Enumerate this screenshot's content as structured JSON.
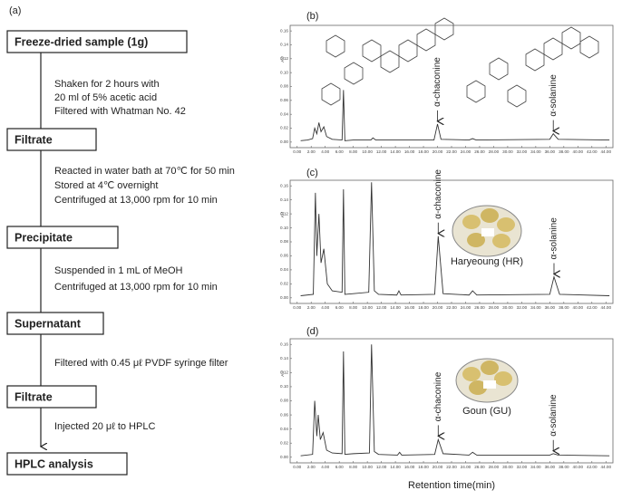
{
  "panel_label": "(a)",
  "flowchart": {
    "boxes": [
      "Freeze-dried sample (1g)",
      "Filtrate",
      "Precipitate",
      "Supernatant",
      "Filtrate",
      "HPLC analysis"
    ],
    "steps": [
      [
        "Shaken for 2 hours with",
        "20 ml of 5% acetic acid",
        "Filtered with Whatman No. 42"
      ],
      [
        "Reacted in water bath at 70℃ for 50 min",
        "Stored at 4℃ overnight",
        "Centrifuged at 13,000 rpm for 10 min"
      ],
      [
        "Suspended in 1 mL of MeOH",
        "Centrifuged at 13,000 rpm for 10 min"
      ],
      [
        "Filtered with 0.45 μℓ PVDF syringe filter"
      ],
      [
        "Injected 20 μℓ to HPLC"
      ]
    ]
  },
  "chart_data": [
    {
      "type": "line",
      "panel": "(b)",
      "ylabel": "AU",
      "color": "#333333",
      "annotations": [
        "α-chaconine",
        "α-solanine"
      ],
      "xlim": [
        -1,
        45
      ],
      "ylim": [
        -0.008,
        0.168
      ],
      "x": [
        0.5,
        1.5,
        2.2,
        2.5,
        2.8,
        3.1,
        3.4,
        3.8,
        4.2,
        5,
        6.4,
        6.6,
        6.8,
        8,
        10.5,
        10.8,
        11.2,
        19.5,
        20,
        20.5,
        24.5,
        25,
        25.5,
        36,
        36.5,
        37.2,
        44.5
      ],
      "values": [
        0.002,
        0.003,
        0.005,
        0.02,
        0.012,
        0.028,
        0.015,
        0.022,
        0.008,
        0.004,
        0.003,
        0.075,
        0.002,
        0.003,
        0.003,
        0.006,
        0.003,
        0.003,
        0.026,
        0.004,
        0.003,
        0.005,
        0.003,
        0.004,
        0.012,
        0.004,
        0.003
      ],
      "yticks": [
        {
          "value": 0,
          "label": "0.00"
        },
        {
          "value": 0.02,
          "label": "0.02"
        },
        {
          "value": 0.04,
          "label": "0.04"
        },
        {
          "value": 0.06,
          "label": "0.06"
        },
        {
          "value": 0.08,
          "label": "0.08"
        },
        {
          "value": 0.1,
          "label": "0.10"
        },
        {
          "value": 0.12,
          "label": "0.12"
        },
        {
          "value": 0.14,
          "label": "0.14"
        },
        {
          "value": 0.16,
          "label": "0.16"
        }
      ],
      "xticks": [
        {
          "value": 0,
          "label": "0.00"
        },
        {
          "value": 2,
          "label": "2.00"
        },
        {
          "value": 4,
          "label": "4.00"
        },
        {
          "value": 6,
          "label": "6.00"
        },
        {
          "value": 8,
          "label": "8.00"
        },
        {
          "value": 10,
          "label": "10.00"
        },
        {
          "value": 12,
          "label": "12.00"
        },
        {
          "value": 14,
          "label": "14.00"
        },
        {
          "value": 16,
          "label": "16.00"
        },
        {
          "value": 18,
          "label": "18.00"
        },
        {
          "value": 20,
          "label": "20.00"
        },
        {
          "value": 22,
          "label": "22.00"
        },
        {
          "value": 24,
          "label": "24.00"
        },
        {
          "value": 26,
          "label": "26.00"
        },
        {
          "value": 28,
          "label": "28.00"
        },
        {
          "value": 30,
          "label": "30.00"
        },
        {
          "value": 32,
          "label": "32.00"
        },
        {
          "value": 34,
          "label": "34.00"
        },
        {
          "value": 36,
          "label": "36.00"
        },
        {
          "value": 38,
          "label": "38.00"
        },
        {
          "value": 40,
          "label": "40.00"
        },
        {
          "value": 42,
          "label": "42.00"
        },
        {
          "value": 44,
          "label": "44.00"
        }
      ]
    },
    {
      "type": "line",
      "panel": "(c)",
      "ylabel": "AU",
      "color": "#333333",
      "annotations": [
        "α-chaconine",
        "α-solanine"
      ],
      "sample": "Haryeoung (HR)",
      "xlim": [
        -1,
        45
      ],
      "ylim": [
        -0.008,
        0.168
      ],
      "x": [
        0.5,
        2.3,
        2.6,
        2.8,
        3.1,
        3.4,
        3.8,
        4.3,
        5,
        6.4,
        6.6,
        6.8,
        8,
        10.2,
        10.6,
        11,
        11.6,
        14.2,
        14.5,
        14.8,
        19.6,
        20.1,
        20.8,
        24.5,
        25,
        25.6,
        36,
        36.6,
        37.4,
        44.5
      ],
      "values": [
        0.003,
        0.005,
        0.15,
        0.06,
        0.12,
        0.05,
        0.07,
        0.02,
        0.01,
        0.008,
        0.155,
        0.005,
        0.006,
        0.008,
        0.165,
        0.01,
        0.005,
        0.004,
        0.01,
        0.004,
        0.005,
        0.088,
        0.006,
        0.004,
        0.01,
        0.004,
        0.005,
        0.03,
        0.005,
        0.003
      ],
      "yticks": [
        {
          "value": 0,
          "label": "0.00"
        },
        {
          "value": 0.02,
          "label": "0.02"
        },
        {
          "value": 0.04,
          "label": "0.04"
        },
        {
          "value": 0.06,
          "label": "0.06"
        },
        {
          "value": 0.08,
          "label": "0.08"
        },
        {
          "value": 0.1,
          "label": "0.10"
        },
        {
          "value": 0.12,
          "label": "0.12"
        },
        {
          "value": 0.14,
          "label": "0.14"
        },
        {
          "value": 0.16,
          "label": "0.16"
        }
      ],
      "xticks": [
        {
          "value": 0,
          "label": "0.00"
        },
        {
          "value": 2,
          "label": "2.00"
        },
        {
          "value": 4,
          "label": "4.00"
        },
        {
          "value": 6,
          "label": "6.00"
        },
        {
          "value": 8,
          "label": "8.00"
        },
        {
          "value": 10,
          "label": "10.00"
        },
        {
          "value": 12,
          "label": "12.00"
        },
        {
          "value": 14,
          "label": "14.00"
        },
        {
          "value": 16,
          "label": "16.00"
        },
        {
          "value": 18,
          "label": "18.00"
        },
        {
          "value": 20,
          "label": "20.00"
        },
        {
          "value": 22,
          "label": "22.00"
        },
        {
          "value": 24,
          "label": "24.00"
        },
        {
          "value": 26,
          "label": "26.00"
        },
        {
          "value": 28,
          "label": "28.00"
        },
        {
          "value": 30,
          "label": "30.00"
        },
        {
          "value": 32,
          "label": "32.00"
        },
        {
          "value": 34,
          "label": "34.00"
        },
        {
          "value": 36,
          "label": "36.00"
        },
        {
          "value": 38,
          "label": "38.00"
        },
        {
          "value": 40,
          "label": "40.00"
        },
        {
          "value": 42,
          "label": "42.00"
        },
        {
          "value": 44,
          "label": "44.00"
        }
      ]
    },
    {
      "type": "line",
      "panel": "(d)",
      "ylabel": "AU",
      "xlabel": "Retention time(min)",
      "color": "#333333",
      "annotations": [
        "α-chaconine",
        "α-solanine"
      ],
      "sample": "Goun (GU)",
      "xlim": [
        -1,
        45
      ],
      "ylim": [
        -0.008,
        0.168
      ],
      "x": [
        0.5,
        2.2,
        2.5,
        2.8,
        3.0,
        3.3,
        3.7,
        4.2,
        5,
        6.4,
        6.6,
        6.8,
        8,
        10.3,
        10.6,
        11,
        11.6,
        14.3,
        14.6,
        14.9,
        19.6,
        20.1,
        20.8,
        24.5,
        25,
        25.6,
        36,
        36.5,
        37.2,
        44.5
      ],
      "values": [
        0.002,
        0.004,
        0.08,
        0.03,
        0.06,
        0.025,
        0.035,
        0.01,
        0.006,
        0.005,
        0.15,
        0.004,
        0.005,
        0.006,
        0.16,
        0.008,
        0.004,
        0.003,
        0.007,
        0.003,
        0.004,
        0.025,
        0.005,
        0.003,
        0.007,
        0.003,
        0.003,
        0.005,
        0.003,
        0.002
      ],
      "yticks": [
        {
          "value": 0,
          "label": "0.00"
        },
        {
          "value": 0.02,
          "label": "0.02"
        },
        {
          "value": 0.04,
          "label": "0.04"
        },
        {
          "value": 0.06,
          "label": "0.06"
        },
        {
          "value": 0.08,
          "label": "0.08"
        },
        {
          "value": 0.1,
          "label": "0.10"
        },
        {
          "value": 0.12,
          "label": "0.12"
        },
        {
          "value": 0.14,
          "label": "0.14"
        },
        {
          "value": 0.16,
          "label": "0.16"
        }
      ],
      "xticks": [
        {
          "value": 0,
          "label": "0.00"
        },
        {
          "value": 2,
          "label": "2.00"
        },
        {
          "value": 4,
          "label": "4.00"
        },
        {
          "value": 6,
          "label": "6.00"
        },
        {
          "value": 8,
          "label": "8.00"
        },
        {
          "value": 10,
          "label": "10.00"
        },
        {
          "value": 12,
          "label": "12.00"
        },
        {
          "value": 14,
          "label": "14.00"
        },
        {
          "value": 16,
          "label": "16.00"
        },
        {
          "value": 18,
          "label": "18.00"
        },
        {
          "value": 20,
          "label": "20.00"
        },
        {
          "value": 22,
          "label": "22.00"
        },
        {
          "value": 24,
          "label": "24.00"
        },
        {
          "value": 26,
          "label": "26.00"
        },
        {
          "value": 28,
          "label": "28.00"
        },
        {
          "value": 30,
          "label": "30.00"
        },
        {
          "value": 32,
          "label": "32.00"
        },
        {
          "value": 34,
          "label": "34.00"
        },
        {
          "value": 36,
          "label": "36.00"
        },
        {
          "value": 38,
          "label": "38.00"
        },
        {
          "value": 40,
          "label": "40.00"
        },
        {
          "value": 42,
          "label": "42.00"
        },
        {
          "value": 44,
          "label": "44.00"
        }
      ]
    }
  ]
}
